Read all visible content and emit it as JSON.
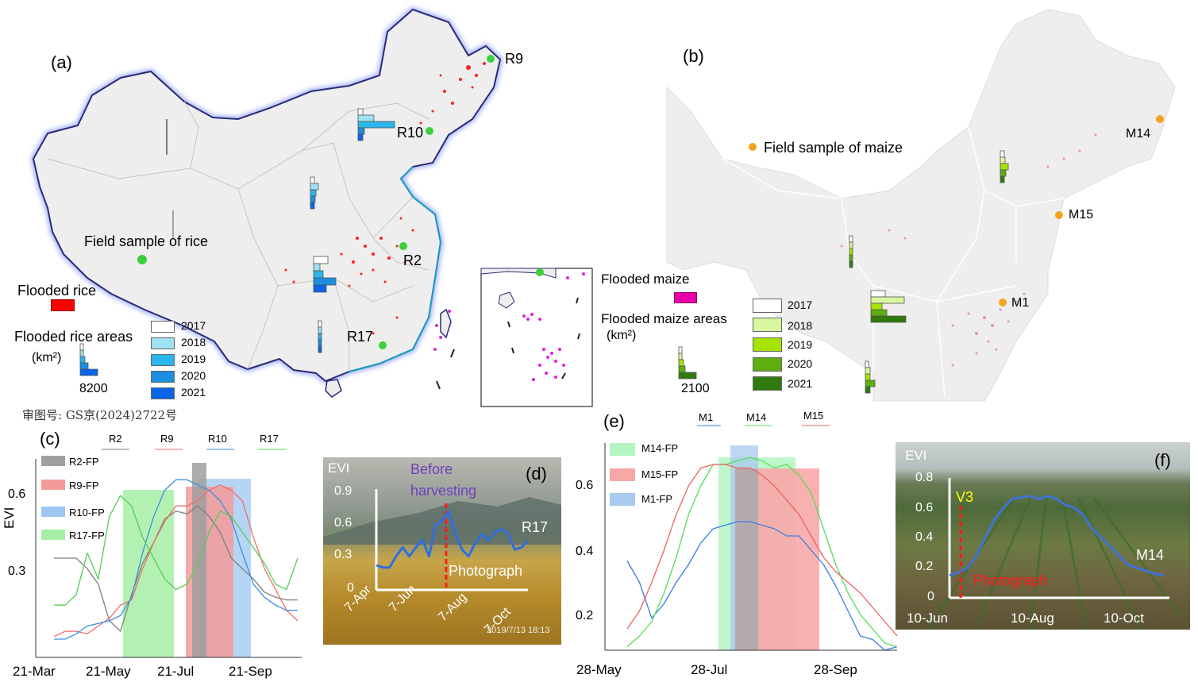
{
  "panel_a": {
    "label": "(a)",
    "field_sample_label": "Field sample of rice",
    "flooded_label": "Flooded rice",
    "areas_label": "Flooded rice areas",
    "unit_label": "(km²)",
    "scale_value": "8200",
    "sites": [
      "R9",
      "R10",
      "R2",
      "R17"
    ],
    "years": [
      "2017",
      "2018",
      "2019",
      "2020",
      "2021"
    ],
    "year_colors": [
      "#ffffff",
      "#9fe1f5",
      "#29b6ea",
      "#1a8fe0",
      "#0a64e6"
    ],
    "flood_color": "#ff0000",
    "review_number": "审图号: GS京(2024)2722号"
  },
  "panel_b": {
    "label": "(b)",
    "field_sample_label": "Field sample of maize",
    "flooded_label": "Flooded maize",
    "areas_label": "Flooded maize areas",
    "unit_label": "(km²)",
    "scale_value": "2100",
    "sites": [
      "M14",
      "M15",
      "M1"
    ],
    "years": [
      "2017",
      "2018",
      "2019",
      "2020",
      "2021"
    ],
    "year_colors": [
      "#ffffff",
      "#d8f7a0",
      "#a6e400",
      "#5fae10",
      "#2f7a0d"
    ],
    "flood_color": "#e600a9"
  },
  "chart_c": {
    "label": "(c)",
    "ylabel": "EVI",
    "legend_lines": [
      "R2",
      "R9",
      "R10",
      "R17"
    ],
    "legend_colors": [
      "#7f7f7f",
      "#f26b6b",
      "#3a8fe0",
      "#55cc55"
    ],
    "fp_labels": [
      "R2-FP",
      "R9-FP",
      "R10-FP",
      "R17-FP"
    ],
    "fp_colors": [
      "#9f9f9f",
      "#f59a9a",
      "#9dc7f0",
      "#a6eea6"
    ],
    "x_ticks": [
      "21-Mar",
      "21-May",
      "21-Jul",
      "21-Sep"
    ],
    "y_ticks": [
      "0.6",
      "0.3"
    ]
  },
  "panel_d": {
    "label": "(d)",
    "ylabel": "EVI",
    "annotation_top": "Before\nharvesting",
    "annotation_bottom": "Photograph",
    "site": "R17",
    "x_ticks": [
      "7-Apr",
      "7-Jun",
      "7-Aug",
      "7-Oct"
    ],
    "y_ticks": [
      "0.9",
      "0.6",
      "0.3",
      "0"
    ],
    "timestamp": "2019/7/13  18:13"
  },
  "chart_e": {
    "label": "(e)",
    "legend_lines": [
      "M1",
      "M14",
      "M15"
    ],
    "legend_colors": [
      "#3a7ee0",
      "#55dd55",
      "#f06060"
    ],
    "fp_labels": [
      "M14-FP",
      "M15-FP",
      "M1-FP"
    ],
    "fp_colors": [
      "#b5f5c2",
      "#f7a7a7",
      "#a9c9ee"
    ],
    "x_ticks": [
      "28-May",
      "28-Jul",
      "28-Sep"
    ],
    "y_ticks": [
      "0.6",
      "0.4",
      "0.2"
    ]
  },
  "panel_f": {
    "label": "(f)",
    "ylabel": "EVI",
    "stage": "V3",
    "annotation": "Photograph",
    "site": "M14",
    "x_ticks": [
      "10-Jun",
      "10-Aug",
      "10-Oct"
    ],
    "y_ticks": [
      "0.8",
      "0.6",
      "0.4",
      "0.2",
      "0"
    ]
  },
  "chart_data": [
    {
      "type": "line",
      "panel": "c",
      "ylabel": "EVI",
      "x_ticks": [
        "21-Mar",
        "21-May",
        "21-Jul",
        "21-Sep"
      ],
      "ylim": [
        0.02,
        0.78
      ],
      "series": [
        {
          "name": "R2",
          "color": "#7f7f7f",
          "x": [
            0,
            10,
            20,
            30,
            40,
            50,
            60,
            70,
            80,
            90,
            100,
            110,
            120,
            130,
            140,
            150,
            160,
            170,
            180,
            190,
            200,
            210,
            220
          ],
          "y": [
            0.4,
            0.4,
            0.4,
            0.36,
            0.3,
            0.16,
            0.12,
            0.26,
            0.38,
            0.46,
            0.55,
            0.58,
            0.57,
            0.6,
            0.56,
            0.5,
            0.4,
            0.36,
            0.32,
            0.27,
            0.25,
            0.24,
            0.24
          ]
        },
        {
          "name": "R9",
          "color": "#f26b6b",
          "x": [
            0,
            10,
            20,
            30,
            40,
            50,
            60,
            70,
            80,
            90,
            100,
            110,
            120,
            130,
            140,
            150,
            160,
            170,
            180,
            190,
            200,
            210,
            220
          ],
          "y": [
            0.1,
            0.12,
            0.12,
            0.11,
            0.14,
            0.17,
            0.22,
            0.24,
            0.36,
            0.46,
            0.54,
            0.6,
            0.6,
            0.62,
            0.66,
            0.68,
            0.66,
            0.62,
            0.48,
            0.36,
            0.28,
            0.2,
            0.16
          ]
        },
        {
          "name": "R10",
          "color": "#3a8fe0",
          "x": [
            0,
            10,
            20,
            30,
            40,
            50,
            60,
            70,
            80,
            90,
            100,
            110,
            120,
            130,
            140,
            150,
            160,
            170,
            180,
            190,
            200,
            210,
            220
          ],
          "y": [
            0.09,
            0.09,
            0.11,
            0.14,
            0.15,
            0.16,
            0.18,
            0.25,
            0.42,
            0.56,
            0.66,
            0.7,
            0.7,
            0.68,
            0.66,
            0.62,
            0.55,
            0.42,
            0.3,
            0.25,
            0.22,
            0.2,
            0.2
          ]
        },
        {
          "name": "R17",
          "color": "#55cc55",
          "x": [
            0,
            10,
            20,
            30,
            40,
            50,
            60,
            70,
            80,
            90,
            100,
            110,
            120,
            130,
            140,
            150,
            160,
            170,
            180,
            190,
            200,
            210,
            220
          ],
          "y": [
            0.22,
            0.22,
            0.26,
            0.42,
            0.32,
            0.56,
            0.64,
            0.6,
            0.48,
            0.4,
            0.32,
            0.28,
            0.3,
            0.38,
            0.5,
            0.58,
            0.56,
            0.5,
            0.44,
            0.38,
            0.3,
            0.28,
            0.4
          ]
        }
      ]
    },
    {
      "type": "line",
      "panel": "e",
      "x_ticks": [
        "28-May",
        "28-Jul",
        "28-Sep"
      ],
      "ylim": [
        0.14,
        0.72
      ],
      "series": [
        {
          "name": "M1",
          "color": "#3a7ee0",
          "x": [
            0,
            10,
            20,
            30,
            40,
            50,
            60,
            70,
            80,
            90,
            100,
            110,
            120,
            130,
            140,
            150,
            160,
            170,
            180,
            190,
            200,
            210,
            220
          ],
          "y": [
            0.39,
            0.33,
            0.23,
            0.27,
            0.33,
            0.38,
            0.44,
            0.48,
            0.49,
            0.5,
            0.5,
            0.49,
            0.48,
            0.46,
            0.46,
            0.42,
            0.38,
            0.32,
            0.25,
            0.18,
            0.17,
            0.14,
            0.15
          ]
        },
        {
          "name": "M14",
          "color": "#55dd55",
          "x": [
            0,
            10,
            20,
            30,
            40,
            50,
            60,
            70,
            80,
            90,
            100,
            110,
            120,
            130,
            140,
            150,
            160,
            170,
            180,
            190,
            200,
            210,
            220
          ],
          "y": [
            0.15,
            0.18,
            0.22,
            0.3,
            0.4,
            0.52,
            0.6,
            0.66,
            0.66,
            0.67,
            0.68,
            0.67,
            0.65,
            0.66,
            0.63,
            0.58,
            0.48,
            0.38,
            0.3,
            0.24,
            0.2,
            0.16,
            0.15
          ]
        },
        {
          "name": "M15",
          "color": "#f06060",
          "x": [
            0,
            10,
            20,
            30,
            40,
            50,
            60,
            70,
            80,
            90,
            100,
            110,
            120,
            130,
            140,
            150,
            160,
            170,
            180,
            190,
            200,
            210,
            220
          ],
          "y": [
            0.2,
            0.25,
            0.33,
            0.42,
            0.52,
            0.6,
            0.65,
            0.66,
            0.66,
            0.65,
            0.65,
            0.63,
            0.6,
            0.56,
            0.52,
            0.46,
            0.4,
            0.36,
            0.33,
            0.3,
            0.26,
            0.22,
            0.18
          ]
        }
      ]
    },
    {
      "type": "line",
      "panel": "d",
      "ylabel": "EVI",
      "ylim": [
        0,
        0.9
      ],
      "x_ticks": [
        "7-Apr",
        "7-Jun",
        "7-Aug",
        "7-Oct"
      ],
      "series": [
        {
          "name": "R17",
          "color": "#2e6fe0",
          "x": [
            0,
            8,
            16,
            24,
            32,
            40,
            48,
            56,
            64,
            72,
            80,
            88,
            96,
            104,
            112,
            120,
            128,
            136,
            144,
            152,
            160,
            168,
            176,
            184
          ],
          "y": [
            0.22,
            0.2,
            0.2,
            0.3,
            0.38,
            0.3,
            0.38,
            0.45,
            0.3,
            0.58,
            0.62,
            0.7,
            0.5,
            0.36,
            0.3,
            0.42,
            0.5,
            0.44,
            0.52,
            0.54,
            0.5,
            0.36,
            0.38,
            0.44
          ]
        }
      ]
    },
    {
      "type": "line",
      "panel": "f",
      "ylabel": "EVI",
      "ylim": [
        0,
        0.8
      ],
      "x_ticks": [
        "10-Jun",
        "10-Aug",
        "10-Oct"
      ],
      "series": [
        {
          "name": "M14",
          "color": "#3f72d8",
          "x": [
            0,
            10,
            20,
            30,
            40,
            50,
            60,
            70,
            80,
            90,
            100,
            110,
            120,
            130,
            140,
            150,
            160,
            170,
            180,
            190,
            200,
            210,
            220,
            230,
            240
          ],
          "y": [
            0.15,
            0.17,
            0.2,
            0.28,
            0.4,
            0.52,
            0.6,
            0.66,
            0.67,
            0.68,
            0.66,
            0.68,
            0.66,
            0.62,
            0.6,
            0.55,
            0.46,
            0.4,
            0.34,
            0.28,
            0.22,
            0.2,
            0.18,
            0.16,
            0.15
          ]
        }
      ]
    }
  ]
}
